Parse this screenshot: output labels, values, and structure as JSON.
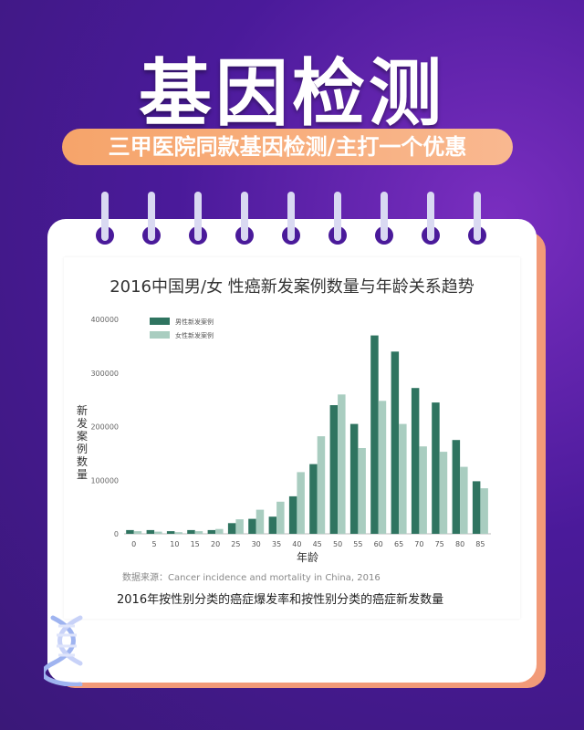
{
  "header": {
    "title": "基因检测",
    "subtitle": "三甲医院同款基因检测/主打一个优惠"
  },
  "colors": {
    "male": "#2f7460",
    "female": "#a9cdc0",
    "background": "#4a1a9a",
    "pill": "#f6a46a",
    "card_shadow": "#f29a78"
  },
  "icons": [
    "dna-helix-icon"
  ],
  "chart_data": {
    "type": "bar",
    "title": "2016中国男/女 性癌新发案例数量与年龄关系趋势",
    "xlabel": "年龄",
    "ylabel": "新发案例数量",
    "ylim": [
      0,
      400000
    ],
    "yticks": [
      "0",
      "100000",
      "200000",
      "300000",
      "400000"
    ],
    "legend_position": "top-left",
    "grid": false,
    "categories": [
      "0",
      "5",
      "10",
      "15",
      "20",
      "25",
      "30",
      "35",
      "40",
      "45",
      "50",
      "55",
      "60",
      "65",
      "70",
      "75",
      "80",
      "85"
    ],
    "series": [
      {
        "name": "男性新发案例",
        "values": [
          7000,
          7000,
          5000,
          7000,
          7000,
          20000,
          28000,
          32000,
          70000,
          130000,
          240000,
          205000,
          370000,
          340000,
          272000,
          245000,
          175000,
          98000
        ]
      },
      {
        "name": "女性新发案例",
        "values": [
          5000,
          4000,
          3000,
          5000,
          9000,
          27000,
          45000,
          60000,
          115000,
          182000,
          260000,
          160000,
          248000,
          205000,
          163000,
          153000,
          125000,
          85000
        ]
      }
    ],
    "source": "数据来源：Cancer incidence and mortality in China, 2016",
    "caption": "2016年按性别分类的癌症爆发率和按性别分类的癌症新发数量"
  }
}
